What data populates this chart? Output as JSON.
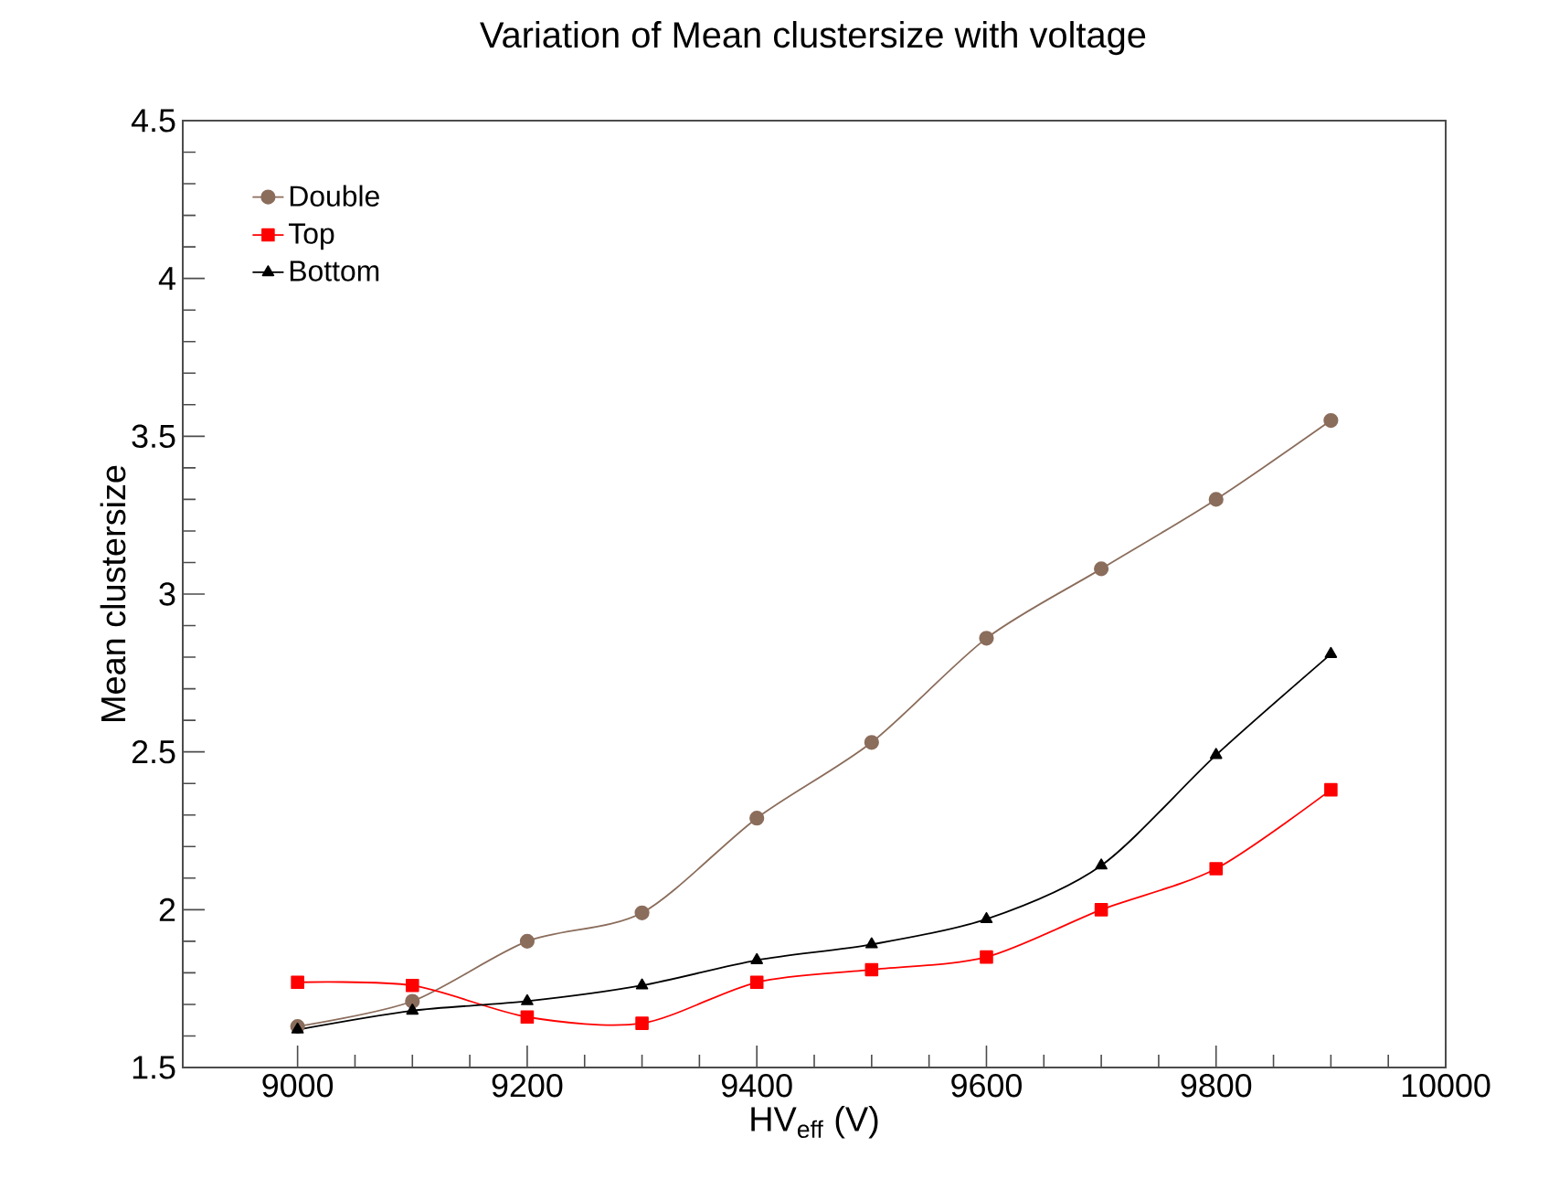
{
  "chart_data": {
    "type": "line",
    "title": "Variation of Mean clustersize with voltage",
    "xlabel": "HV$_{eff}$ (V)",
    "ylabel": "Mean clustersize",
    "x": [
      9000,
      9100,
      9200,
      9300,
      9400,
      9500,
      9600,
      9700,
      9800,
      9900
    ],
    "series": [
      {
        "name": "Double",
        "color": "#8b6d5c",
        "marker": "circle",
        "values": [
          1.63,
          1.71,
          1.9,
          1.99,
          2.29,
          2.53,
          2.86,
          3.08,
          3.3,
          3.55
        ]
      },
      {
        "name": "Top",
        "color": "#ff0000",
        "marker": "square",
        "values": [
          1.77,
          1.76,
          1.66,
          1.64,
          1.77,
          1.81,
          1.85,
          2.0,
          2.13,
          2.38
        ]
      },
      {
        "name": "Bottom",
        "color": "#000000",
        "marker": "triangle",
        "values": [
          1.62,
          1.68,
          1.71,
          1.76,
          1.84,
          1.89,
          1.97,
          2.14,
          2.49,
          2.81
        ]
      }
    ],
    "xlim": [
      8900,
      10000
    ],
    "xticks": [
      9000,
      9200,
      9400,
      9600,
      9800,
      10000
    ],
    "ylim": [
      1.5,
      4.5
    ],
    "yticks": [
      1.5,
      2,
      2.5,
      3,
      3.5,
      4,
      4.5
    ],
    "grid": false,
    "legend": "top left"
  }
}
